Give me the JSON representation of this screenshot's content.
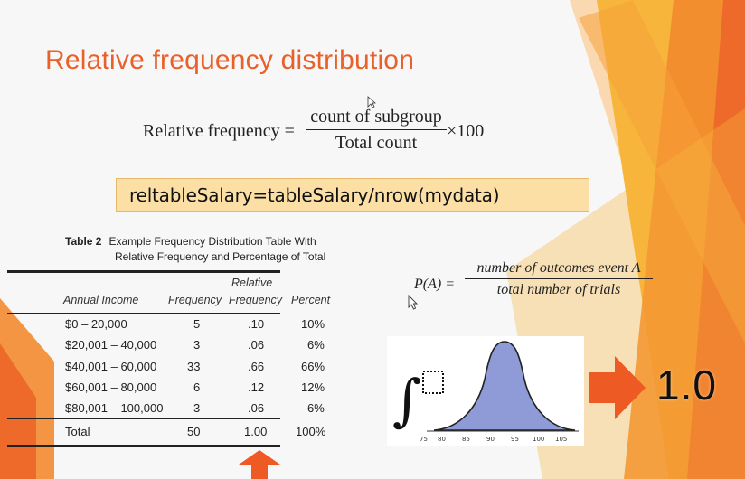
{
  "slide": {
    "title": "Relative frequency distribution",
    "formula_relative_frequency": {
      "lhs": "Relative frequency =",
      "numerator": "count of subgroup",
      "denominator": "Total count",
      "rhs": "×100"
    },
    "code_line": "reltableSalary=tableSalary/nrow(mydata)",
    "table": {
      "caption_label": "Table 2",
      "caption_line1": "Example Frequency Distribution Table With",
      "caption_line2": "Relative Frequency and Percentage of Total",
      "header_relative_top": "Relative",
      "headers": [
        "Annual Income",
        "Frequency",
        "Frequency",
        "Percent"
      ],
      "rows": [
        [
          "$0 – 20,000",
          "5",
          ".10",
          "10%"
        ],
        [
          "$20,001 – 40,000",
          "3",
          ".06",
          "6%"
        ],
        [
          "$40,001 – 60,000",
          "33",
          ".66",
          "66%"
        ],
        [
          "$60,001 – 80,000",
          "6",
          ".12",
          "12%"
        ],
        [
          "$80,001 – 100,000",
          "3",
          ".06",
          "6%"
        ]
      ],
      "total": [
        "Total",
        "50",
        "1.00",
        "100%"
      ]
    },
    "formula_probability": {
      "lhs": "P(A) =",
      "numerator": "number of outcomes event A",
      "denominator": "total number of trials"
    },
    "curve_axis_ticks": [
      "75",
      "80",
      "85",
      "90",
      "95",
      "100",
      "105"
    ],
    "result_value": "1.0"
  },
  "colors": {
    "title": "#e8612a",
    "code_box": "#fcdfa4",
    "curve_fill": "#8e9bd6",
    "arrow": "#ee5a24",
    "deco_orange": "#f28a2e",
    "deco_yellow": "#f7b53b"
  },
  "icons": [
    "mouse-cursor-icon",
    "up-arrow-icon",
    "right-arrow-icon",
    "integral-symbol-icon"
  ]
}
